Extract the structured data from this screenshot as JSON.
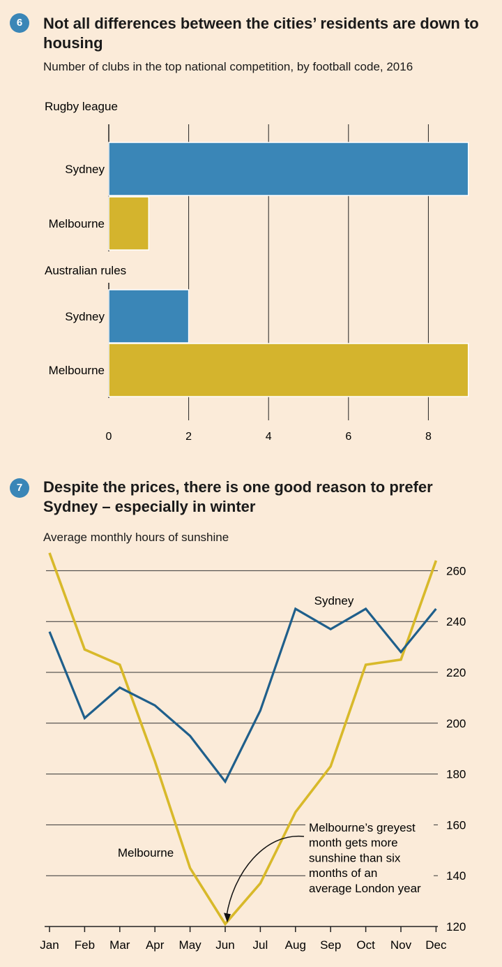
{
  "sections": {
    "chart6": {
      "badge": "6",
      "title": "Not all differences between the cities’ residents are down to housing",
      "subtitle": "Number of clubs in the top national competition, by football code, 2016"
    },
    "chart7": {
      "badge": "7",
      "title": "Despite the prices, there is one good reason to prefer Sydney – especially in winter",
      "subtitle": "Average monthly hours of sunshine"
    }
  },
  "colors": {
    "background": "#fbebd9",
    "sydney": "#3a86b7",
    "melbourne": "#d4b42d",
    "sydney_line": "#1f5f8b",
    "melbourne_line": "#d8b92a",
    "grid": "#333333"
  },
  "chart_data": [
    {
      "type": "bar",
      "orientation": "horizontal",
      "groups": [
        {
          "name": "Rugby league",
          "categories": [
            "Sydney",
            "Melbourne"
          ],
          "values": [
            9,
            1
          ]
        },
        {
          "name": "Australian rules",
          "categories": [
            "Sydney",
            "Melbourne"
          ],
          "values": [
            2,
            9
          ]
        }
      ],
      "xticks": [
        0,
        2,
        4,
        6,
        8
      ],
      "xlim": [
        0,
        9
      ],
      "grid": true
    },
    {
      "type": "line",
      "x": [
        "Jan",
        "Feb",
        "Mar",
        "Apr",
        "May",
        "Jun",
        "Jul",
        "Aug",
        "Sep",
        "Oct",
        "Nov",
        "Dec"
      ],
      "series": [
        {
          "name": "Sydney",
          "values": [
            236,
            202,
            214,
            207,
            195,
            177,
            205,
            245,
            237,
            245,
            228,
            245
          ]
        },
        {
          "name": "Melbourne",
          "values": [
            267,
            229,
            223,
            185,
            143,
            121,
            137,
            165,
            183,
            223,
            225,
            264
          ]
        }
      ],
      "yticks": [
        120,
        140,
        160,
        180,
        200,
        220,
        240,
        260
      ],
      "ylim": [
        120,
        270
      ],
      "grid": true,
      "annotation": "Melbourne’s greyest month gets more sunshine than six months of an average London year",
      "annotation_lines": [
        "Melbourne’s greyest",
        "month gets more",
        "sunshine than six",
        "months of an",
        "average London year"
      ]
    }
  ]
}
